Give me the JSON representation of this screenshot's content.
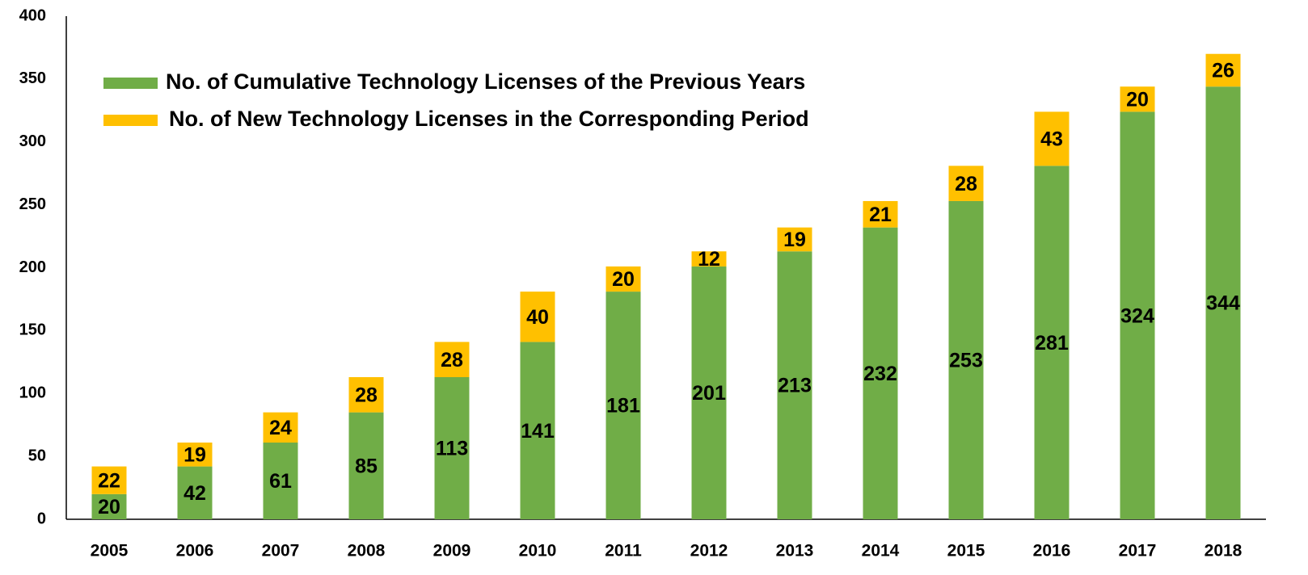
{
  "chart_data": {
    "type": "stacked_bar",
    "categories": [
      "2005",
      "2006",
      "2007",
      "2008",
      "2009",
      "2010",
      "2011",
      "2012",
      "2013",
      "2014",
      "2015",
      "2016",
      "2017",
      "2018"
    ],
    "series": [
      {
        "name": "No. of Cumulative Technology Licenses of the Previous Years",
        "color": "#70ad47",
        "values": [
          20,
          42,
          61,
          85,
          113,
          141,
          181,
          201,
          213,
          232,
          253,
          281,
          324,
          344
        ]
      },
      {
        "name": "No. of New Technology Licenses in the Corresponding Period",
        "color": "#ffc000",
        "values": [
          22,
          19,
          24,
          28,
          28,
          40,
          20,
          12,
          19,
          21,
          28,
          43,
          20,
          26
        ]
      }
    ],
    "ylim": [
      0,
      400
    ],
    "yticks": [
      0,
      50,
      100,
      150,
      200,
      250,
      300,
      350,
      400
    ],
    "grid": false,
    "legend": "top-left"
  }
}
